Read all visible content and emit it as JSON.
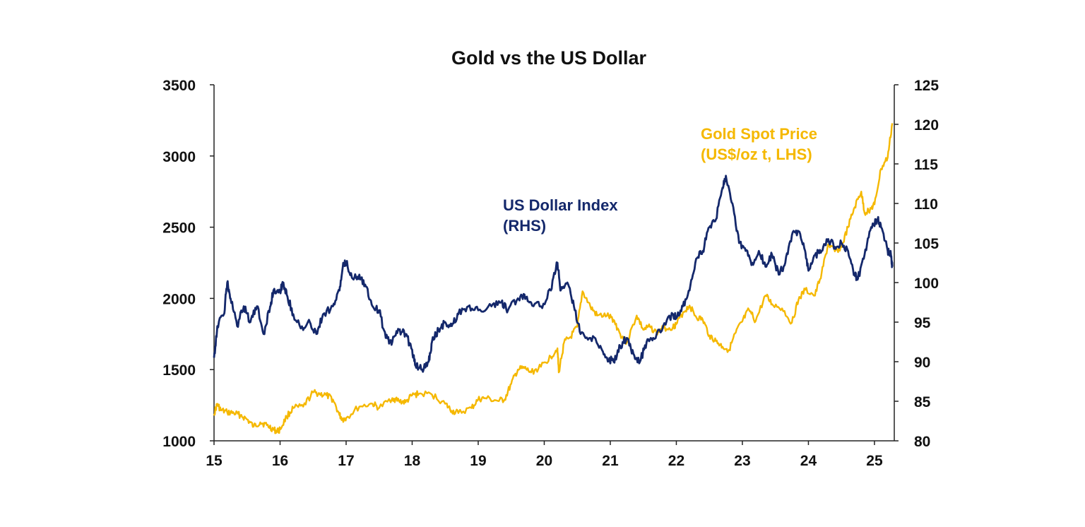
{
  "chart_data": {
    "type": "line",
    "title": "Gold vs the US Dollar",
    "x_ticks": [
      "15",
      "16",
      "17",
      "18",
      "19",
      "20",
      "21",
      "22",
      "23",
      "24",
      "25"
    ],
    "x_range": [
      2015,
      2025.3
    ],
    "y_left": {
      "ticks": [
        "1000",
        "1500",
        "2000",
        "2500",
        "3000",
        "3500"
      ],
      "range": [
        1000,
        3500
      ]
    },
    "y_right": {
      "ticks": [
        "80",
        "85",
        "90",
        "95",
        "100",
        "105",
        "110",
        "115",
        "120",
        "125"
      ],
      "range": [
        80,
        125
      ]
    },
    "grid": false,
    "colors": {
      "gold": "#F5B800",
      "usd": "#14286B",
      "axis": "#222222"
    },
    "series": [
      {
        "name": "Gold Spot Price (US$/oz t, LHS)",
        "label_lines": [
          "Gold Spot Price",
          "(US$/oz t, LHS)"
        ],
        "axis": "left",
        "points": [
          [
            2015.0,
            1190
          ],
          [
            2015.05,
            1260
          ],
          [
            2015.1,
            1215
          ],
          [
            2015.2,
            1200
          ],
          [
            2015.3,
            1195
          ],
          [
            2015.4,
            1180
          ],
          [
            2015.5,
            1150
          ],
          [
            2015.6,
            1100
          ],
          [
            2015.7,
            1130
          ],
          [
            2015.8,
            1110
          ],
          [
            2015.9,
            1080
          ],
          [
            2015.95,
            1065
          ],
          [
            2016.0,
            1080
          ],
          [
            2016.1,
            1170
          ],
          [
            2016.2,
            1230
          ],
          [
            2016.35,
            1240
          ],
          [
            2016.5,
            1340
          ],
          [
            2016.6,
            1330
          ],
          [
            2016.7,
            1320
          ],
          [
            2016.8,
            1290
          ],
          [
            2016.9,
            1180
          ],
          [
            2016.95,
            1150
          ],
          [
            2017.0,
            1160
          ],
          [
            2017.2,
            1240
          ],
          [
            2017.4,
            1260
          ],
          [
            2017.5,
            1230
          ],
          [
            2017.7,
            1300
          ],
          [
            2017.8,
            1280
          ],
          [
            2017.9,
            1270
          ],
          [
            2018.0,
            1320
          ],
          [
            2018.1,
            1330
          ],
          [
            2018.3,
            1325
          ],
          [
            2018.5,
            1260
          ],
          [
            2018.6,
            1210
          ],
          [
            2018.7,
            1195
          ],
          [
            2018.9,
            1230
          ],
          [
            2019.0,
            1290
          ],
          [
            2019.1,
            1300
          ],
          [
            2019.3,
            1280
          ],
          [
            2019.4,
            1290
          ],
          [
            2019.5,
            1400
          ],
          [
            2019.6,
            1500
          ],
          [
            2019.7,
            1510
          ],
          [
            2019.8,
            1480
          ],
          [
            2019.95,
            1520
          ],
          [
            2020.1,
            1590
          ],
          [
            2020.2,
            1650
          ],
          [
            2020.22,
            1480
          ],
          [
            2020.3,
            1690
          ],
          [
            2020.4,
            1730
          ],
          [
            2020.5,
            1800
          ],
          [
            2020.58,
            2050
          ],
          [
            2020.7,
            1940
          ],
          [
            2020.8,
            1880
          ],
          [
            2020.95,
            1880
          ],
          [
            2021.05,
            1850
          ],
          [
            2021.15,
            1750
          ],
          [
            2021.25,
            1690
          ],
          [
            2021.4,
            1880
          ],
          [
            2021.5,
            1780
          ],
          [
            2021.6,
            1800
          ],
          [
            2021.7,
            1760
          ],
          [
            2021.8,
            1790
          ],
          [
            2021.95,
            1800
          ],
          [
            2022.0,
            1820
          ],
          [
            2022.1,
            1900
          ],
          [
            2022.2,
            1950
          ],
          [
            2022.3,
            1870
          ],
          [
            2022.4,
            1850
          ],
          [
            2022.5,
            1740
          ],
          [
            2022.6,
            1700
          ],
          [
            2022.7,
            1660
          ],
          [
            2022.8,
            1640
          ],
          [
            2022.9,
            1760
          ],
          [
            2023.0,
            1840
          ],
          [
            2023.1,
            1920
          ],
          [
            2023.2,
            1840
          ],
          [
            2023.35,
            2020
          ],
          [
            2023.45,
            1960
          ],
          [
            2023.6,
            1930
          ],
          [
            2023.75,
            1830
          ],
          [
            2023.85,
            1990
          ],
          [
            2023.95,
            2060
          ],
          [
            2024.1,
            2020
          ],
          [
            2024.2,
            2180
          ],
          [
            2024.3,
            2380
          ],
          [
            2024.4,
            2330
          ],
          [
            2024.5,
            2360
          ],
          [
            2024.6,
            2500
          ],
          [
            2024.7,
            2640
          ],
          [
            2024.8,
            2750
          ],
          [
            2024.85,
            2600
          ],
          [
            2024.95,
            2630
          ],
          [
            2025.0,
            2660
          ],
          [
            2025.1,
            2910
          ],
          [
            2025.2,
            2990
          ],
          [
            2025.27,
            3230
          ]
        ]
      },
      {
        "name": "US Dollar Index (RHS)",
        "label_lines": [
          "US Dollar Index",
          "(RHS)"
        ],
        "axis": "right",
        "points": [
          [
            2015.0,
            90.5
          ],
          [
            2015.05,
            94.5
          ],
          [
            2015.15,
            96
          ],
          [
            2015.2,
            100
          ],
          [
            2015.25,
            98
          ],
          [
            2015.35,
            94.5
          ],
          [
            2015.45,
            97
          ],
          [
            2015.55,
            95
          ],
          [
            2015.65,
            97
          ],
          [
            2015.75,
            93.5
          ],
          [
            2015.85,
            97
          ],
          [
            2015.9,
            99
          ],
          [
            2016.0,
            99
          ],
          [
            2016.05,
            100
          ],
          [
            2016.1,
            98.5
          ],
          [
            2016.2,
            96
          ],
          [
            2016.35,
            94
          ],
          [
            2016.45,
            95
          ],
          [
            2016.55,
            93.5
          ],
          [
            2016.65,
            96
          ],
          [
            2016.8,
            97
          ],
          [
            2016.9,
            99
          ],
          [
            2016.95,
            102
          ],
          [
            2017.0,
            102.5
          ],
          [
            2017.1,
            100.5
          ],
          [
            2017.2,
            101
          ],
          [
            2017.3,
            99.5
          ],
          [
            2017.4,
            97
          ],
          [
            2017.5,
            96.5
          ],
          [
            2017.6,
            93
          ],
          [
            2017.7,
            92.5
          ],
          [
            2017.8,
            94
          ],
          [
            2017.9,
            93.5
          ],
          [
            2018.0,
            91.5
          ],
          [
            2018.05,
            89.5
          ],
          [
            2018.15,
            89
          ],
          [
            2018.25,
            90
          ],
          [
            2018.3,
            92.5
          ],
          [
            2018.4,
            94
          ],
          [
            2018.5,
            95
          ],
          [
            2018.6,
            94.5
          ],
          [
            2018.7,
            96
          ],
          [
            2018.85,
            97
          ],
          [
            2019.0,
            96.5
          ],
          [
            2019.2,
            97
          ],
          [
            2019.35,
            97.5
          ],
          [
            2019.45,
            96.5
          ],
          [
            2019.6,
            98
          ],
          [
            2019.7,
            98.5
          ],
          [
            2019.8,
            97.5
          ],
          [
            2019.95,
            97
          ],
          [
            2020.1,
            99
          ],
          [
            2020.2,
            102.5
          ],
          [
            2020.25,
            99
          ],
          [
            2020.35,
            100
          ],
          [
            2020.45,
            97
          ],
          [
            2020.55,
            93.5
          ],
          [
            2020.7,
            93
          ],
          [
            2020.85,
            92
          ],
          [
            2020.95,
            90.5
          ],
          [
            2021.05,
            90
          ],
          [
            2021.15,
            92
          ],
          [
            2021.25,
            93
          ],
          [
            2021.35,
            91
          ],
          [
            2021.45,
            90
          ],
          [
            2021.55,
            92.5
          ],
          [
            2021.65,
            93
          ],
          [
            2021.8,
            94.5
          ],
          [
            2021.95,
            96
          ],
          [
            2022.0,
            95.5
          ],
          [
            2022.1,
            97
          ],
          [
            2022.2,
            99
          ],
          [
            2022.3,
            103
          ],
          [
            2022.4,
            104
          ],
          [
            2022.5,
            107
          ],
          [
            2022.6,
            108
          ],
          [
            2022.7,
            112
          ],
          [
            2022.75,
            113.5
          ],
          [
            2022.85,
            110
          ],
          [
            2022.95,
            105
          ],
          [
            2023.05,
            104
          ],
          [
            2023.15,
            102.5
          ],
          [
            2023.25,
            104
          ],
          [
            2023.35,
            102
          ],
          [
            2023.45,
            103.5
          ],
          [
            2023.55,
            101
          ],
          [
            2023.65,
            102.5
          ],
          [
            2023.75,
            106
          ],
          [
            2023.85,
            106.5
          ],
          [
            2023.95,
            104
          ],
          [
            2024.0,
            101.5
          ],
          [
            2024.1,
            103.5
          ],
          [
            2024.2,
            104
          ],
          [
            2024.3,
            105.5
          ],
          [
            2024.4,
            104.5
          ],
          [
            2024.5,
            105
          ],
          [
            2024.6,
            104
          ],
          [
            2024.7,
            101
          ],
          [
            2024.75,
            100.5
          ],
          [
            2024.85,
            103.5
          ],
          [
            2024.95,
            107
          ],
          [
            2025.05,
            108
          ],
          [
            2025.1,
            107
          ],
          [
            2025.2,
            104
          ],
          [
            2025.25,
            103.5
          ],
          [
            2025.27,
            102
          ]
        ]
      }
    ]
  }
}
